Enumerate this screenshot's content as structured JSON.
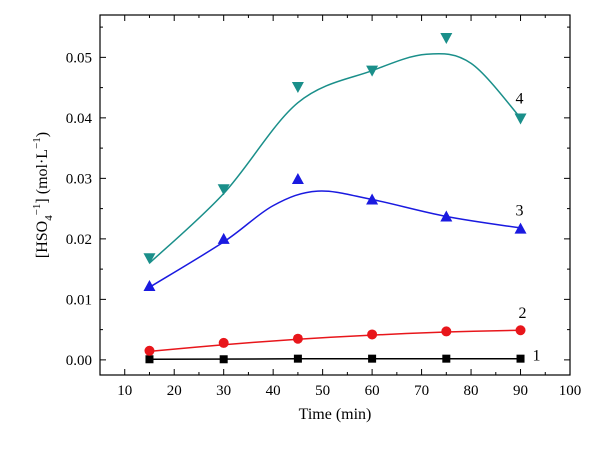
{
  "chart_data": {
    "type": "scatter",
    "title": "",
    "xlabel": "Time (min)",
    "ylabel": "[HSO4−1] (mol·L−1)",
    "ylabel_parts": {
      "open": "[HSO",
      "sub": "4",
      "sup1": "−1",
      "close": "] (mol·L",
      "sup2": "−1",
      "end": ")"
    },
    "xlim": [
      5,
      100
    ],
    "ylim": [
      -0.0025,
      0.057
    ],
    "x_ticks": [
      10,
      20,
      30,
      40,
      50,
      60,
      70,
      80,
      90,
      100
    ],
    "y_ticks": [
      0.0,
      0.01,
      0.02,
      0.03,
      0.04,
      0.05
    ],
    "y_tick_labels": [
      "0.00",
      "0.01",
      "0.02",
      "0.03",
      "0.04",
      "0.05"
    ],
    "grid": false,
    "x": [
      15,
      30,
      45,
      60,
      75,
      90
    ],
    "series": [
      {
        "name": "1",
        "marker": "square",
        "color": "#000000",
        "values": [
          0.0001,
          0.0001,
          0.0002,
          0.0002,
          0.0002,
          0.0002
        ],
        "curve": [
          [
            15,
            0.0001
          ],
          [
            45,
            0.00018
          ],
          [
            90,
            0.0002
          ]
        ]
      },
      {
        "name": "2",
        "marker": "circle",
        "color": "#e8161b",
        "values": [
          0.0015,
          0.0028,
          0.0035,
          0.0042,
          0.0047,
          0.0049
        ],
        "curve": [
          [
            15,
            0.0014
          ],
          [
            30,
            0.0025
          ],
          [
            45,
            0.0034
          ],
          [
            60,
            0.0041
          ],
          [
            75,
            0.0046
          ],
          [
            90,
            0.0049
          ]
        ]
      },
      {
        "name": "3",
        "marker": "triangle-up",
        "color": "#1a1ae0",
        "values": [
          0.0122,
          0.02,
          0.0299,
          0.0265,
          0.0237,
          0.0217
        ],
        "curve": [
          [
            15,
            0.012
          ],
          [
            30,
            0.0195
          ],
          [
            40,
            0.0255
          ],
          [
            49,
            0.0279
          ],
          [
            60,
            0.0265
          ],
          [
            75,
            0.0237
          ],
          [
            90,
            0.0218
          ]
        ]
      },
      {
        "name": "4",
        "marker": "triangle-down",
        "color": "#1a8f8a",
        "values": [
          0.0168,
          0.0282,
          0.0451,
          0.0478,
          0.0532,
          0.0399
        ],
        "curve": [
          [
            15,
            0.016
          ],
          [
            30,
            0.0275
          ],
          [
            45,
            0.0425
          ],
          [
            60,
            0.0478
          ],
          [
            71,
            0.0505
          ],
          [
            80,
            0.049
          ],
          [
            90,
            0.04
          ]
        ]
      }
    ]
  }
}
